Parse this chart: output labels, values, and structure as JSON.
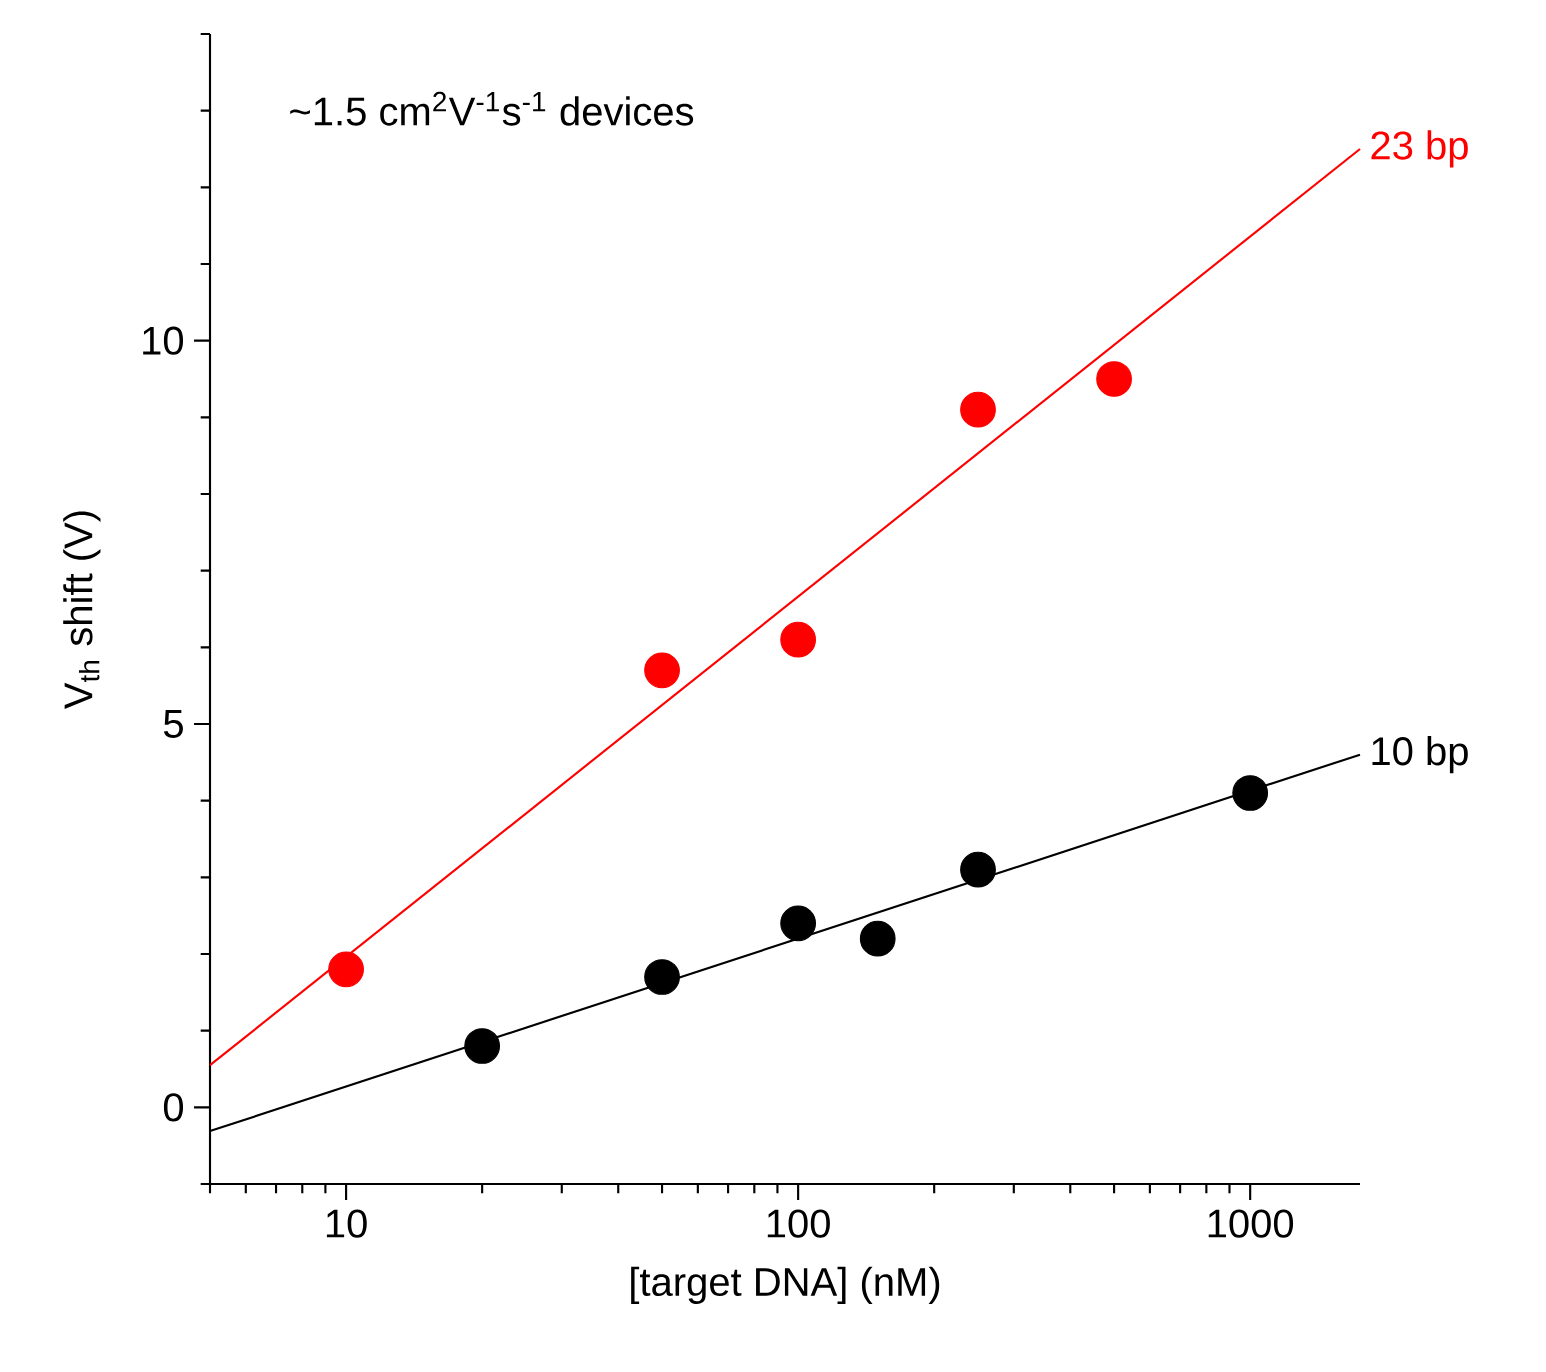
{
  "chart_data": {
    "type": "scatter",
    "xlabel": "[target DNA] (nM)",
    "ylabel": "V$_{th}$ shift (V)",
    "annotations": [
      "~1.5 cm$^{2}$V$^{-1}$s$^{-1}$ devices"
    ],
    "log": "x",
    "marker": "circle",
    "xlim": [
      5,
      1750
    ],
    "ylim": [
      -1,
      14
    ],
    "xticks": [
      {
        "value": 5,
        "label": null
      },
      {
        "value": 6,
        "label": null
      },
      {
        "value": 7,
        "label": null
      },
      {
        "value": 8,
        "label": null
      },
      {
        "value": 9,
        "label": null
      },
      10,
      {
        "value": 20,
        "label": null
      },
      {
        "value": 30,
        "label": null
      },
      {
        "value": 40,
        "label": null
      },
      {
        "value": 50,
        "label": null
      },
      {
        "value": 60,
        "label": null
      },
      {
        "value": 70,
        "label": null
      },
      {
        "value": 80,
        "label": null
      },
      {
        "value": 90,
        "label": null
      },
      100,
      {
        "value": 200,
        "label": null
      },
      {
        "value": 300,
        "label": null
      },
      {
        "value": 400,
        "label": null
      },
      {
        "value": 500,
        "label": null
      },
      {
        "value": 600,
        "label": null
      },
      {
        "value": 700,
        "label": null
      },
      {
        "value": 800,
        "label": null
      },
      {
        "value": 900,
        "label": null
      },
      1000
    ],
    "yticks": [
      {
        "value": -1,
        "label": null
      },
      0,
      {
        "value": 1,
        "label": null
      },
      {
        "value": 2,
        "label": null
      },
      {
        "value": 3,
        "label": null
      },
      {
        "value": 4,
        "label": null
      },
      5,
      {
        "value": 6,
        "label": null
      },
      {
        "value": 7,
        "label": null
      },
      {
        "value": 8,
        "label": null
      },
      {
        "value": 9,
        "label": null
      },
      10,
      {
        "value": 11,
        "label": null
      },
      {
        "value": 12,
        "label": null
      },
      {
        "value": 13,
        "label": null
      },
      {
        "value": 14,
        "label": null
      }
    ],
    "series": [
      {
        "type": "line",
        "marker": "none",
        "name": "23 bp",
        "color": "#ff0000",
        "x": [
          5,
          1750
        ],
        "values": [
          0.55,
          12.5
        ]
      },
      {
        "type": "line",
        "marker": "none",
        "name": "10 bp",
        "color": "#000000",
        "x": [
          5,
          1750
        ],
        "values": [
          -0.31,
          4.6
        ]
      },
      {
        "color": "#ff0000",
        "x": [
          10,
          50,
          100,
          250,
          500
        ],
        "values": [
          1.8,
          5.7,
          6.1,
          9.1,
          9.5
        ]
      },
      {
        "color": "#000000",
        "x": [
          20,
          50,
          100,
          150,
          250,
          1000
        ],
        "values": [
          0.8,
          1.7,
          2.4,
          2.2,
          3.1,
          4.1
        ]
      }
    ]
  }
}
